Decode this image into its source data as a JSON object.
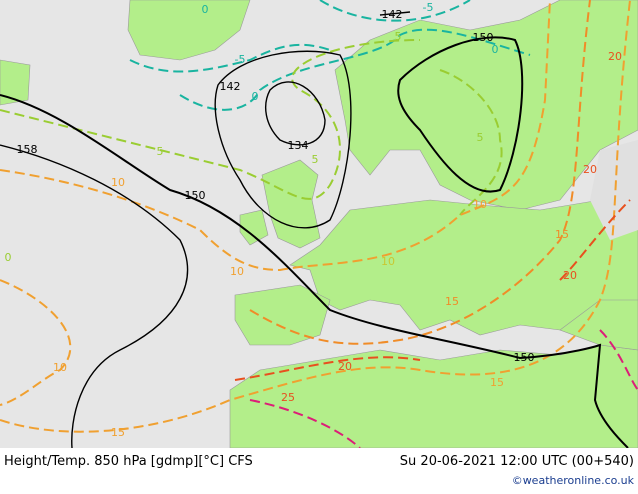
{
  "title": "Height/Temp. 850 hPa [gdmp][°C] CFS",
  "datetime": "Su 20-06-2021 12:00 UTC (00+540)",
  "credit": "©weatheronline.co.uk",
  "contour_labels": [
    "142",
    "-5",
    "0",
    "0",
    "150",
    "-5",
    "5",
    "142",
    "0",
    "134",
    "5",
    "5",
    "158",
    "150",
    "10",
    "10",
    "10",
    "0",
    "5",
    "10",
    "15",
    "20",
    "20",
    "20",
    "15",
    "150",
    "20",
    "25",
    "15",
    "15",
    "10"
  ]
}
